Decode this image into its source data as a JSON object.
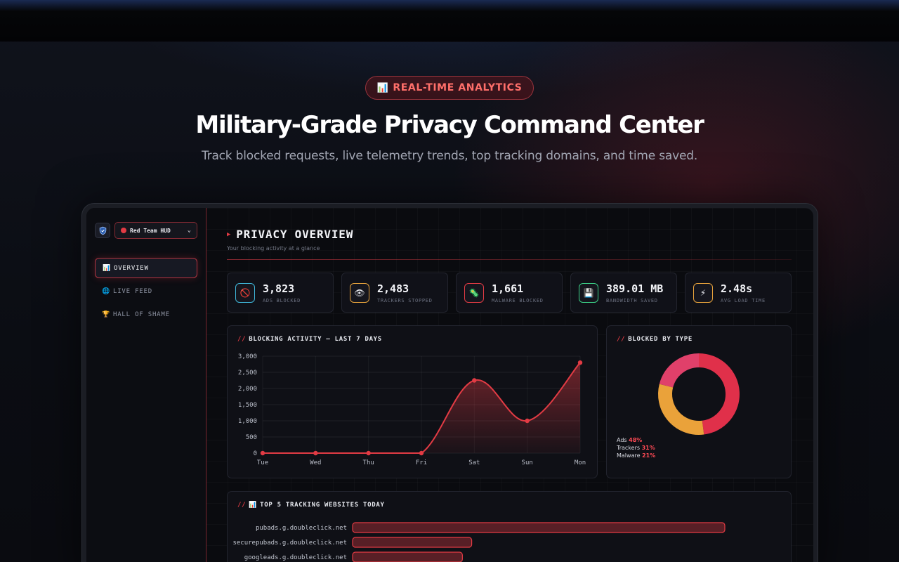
{
  "hero": {
    "badge_icon": "chart-icon",
    "badge_label": "REAL-TIME ANALYTICS",
    "title": "Military-Grade Privacy Command Center",
    "subtitle": "Track blocked requests, live telemetry trends, top tracking domains, and time saved."
  },
  "sidebar": {
    "profile": "Red Team HUD",
    "nav": [
      {
        "label": "OVERVIEW",
        "icon": "chart-icon",
        "active": true
      },
      {
        "label": "LIVE FEED",
        "icon": "globe-icon",
        "active": false
      },
      {
        "label": "HALL OF SHAME",
        "icon": "trophy-icon",
        "active": false
      }
    ]
  },
  "main": {
    "title": "PRIVACY OVERVIEW",
    "subtitle": "Your blocking activity at a glance"
  },
  "stats": [
    {
      "value": "3,823",
      "label": "ADS BLOCKED",
      "icon": "no-entry-icon",
      "color": "#3fb6d9"
    },
    {
      "value": "2,483",
      "label": "TRACKERS STOPPED",
      "icon": "eye-icon",
      "color": "#e8a33c"
    },
    {
      "value": "1,661",
      "label": "MALWARE BLOCKED",
      "icon": "virus-icon",
      "color": "#e23b44"
    },
    {
      "value": "389.01 MB",
      "label": "BANDWIDTH SAVED",
      "icon": "floppy-icon",
      "color": "#3bcf86"
    },
    {
      "value": "2.48s",
      "label": "AVG LOAD TIME",
      "icon": "lightning-icon",
      "color": "#e8a33c"
    }
  ],
  "activity": {
    "title": "BLOCKING ACTIVITY — LAST 7 DAYS"
  },
  "type_card": {
    "title": "BLOCKED BY TYPE"
  },
  "top_sites": {
    "title": "TOP 5 TRACKING WEBSITES TODAY",
    "icon": "chart-icon"
  },
  "chart_data": [
    {
      "type": "area",
      "title": "BLOCKING ACTIVITY — LAST 7 DAYS",
      "categories": [
        "Tue",
        "Wed",
        "Thu",
        "Fri",
        "Sat",
        "Sun",
        "Mon"
      ],
      "values": [
        0,
        0,
        0,
        0,
        2250,
        1000,
        2800
      ],
      "ylim": [
        0,
        3000
      ],
      "yticks": [
        0,
        500,
        "1,000",
        "1,500",
        "2,000",
        "2,500",
        "3,000"
      ],
      "grid": true,
      "color": "#e23b44"
    },
    {
      "type": "pie",
      "title": "BLOCKED BY TYPE",
      "donut": true,
      "slices": [
        {
          "label": "Ads",
          "value": 48,
          "pct_label": "48%",
          "color": "#e0304a"
        },
        {
          "label": "Trackers",
          "value": 31,
          "pct_label": "31%",
          "color": "#eaa23a"
        },
        {
          "label": "Malware",
          "value": 21,
          "pct_label": "21%",
          "color": "#e0406a"
        }
      ]
    },
    {
      "type": "bar",
      "orientation": "horizontal",
      "title": "TOP 5 TRACKING WEBSITES TODAY",
      "categories": [
        "pubads.g.doubleclick.net",
        "securepubads.g.doubleclick.net",
        "googleads.g.doubleclick.net"
      ],
      "values": [
        100,
        32,
        29.5
      ],
      "color": "#e23b44"
    }
  ]
}
